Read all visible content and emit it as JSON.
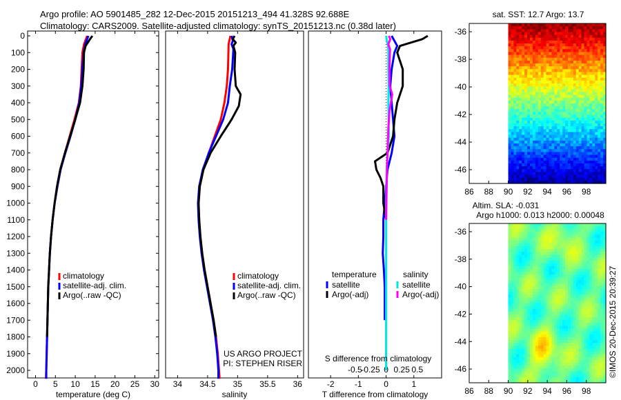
{
  "header": {
    "line1": "Argo profile: AO 5901485_282 12-Dec-2015 20151213_494 41.328S 92.688E",
    "line2": "Climatology: CARS2009. Satellite-adjusted climatology: synTS_20151213.nc (0.38d later)"
  },
  "colors": {
    "clim": "#ff0000",
    "sat": "#0000ff",
    "argo": "#000000",
    "sat_s": "#00e5e5",
    "argo_s": "#ff00ff"
  },
  "chart_data": [
    {
      "type": "line",
      "title": "temperature profile",
      "xlabel": "temperature (deg C)",
      "ylabel": "",
      "xlim": [
        -2,
        31
      ],
      "ylim": [
        2080,
        0
      ],
      "xticks": [
        0,
        5,
        10,
        15,
        20,
        25,
        30
      ],
      "yticks": [
        0,
        100,
        200,
        300,
        400,
        500,
        600,
        700,
        800,
        900,
        1000,
        1100,
        1200,
        1300,
        1400,
        1500,
        1600,
        1700,
        1800,
        1900,
        2000
      ],
      "legend": [
        "climatology",
        "satellite-adj. clim.",
        "Argo(..raw -QC)"
      ],
      "legend_position": "lower-center",
      "series": [
        {
          "name": "climatology",
          "color_key": "clim",
          "points": [
            [
              13.0,
              0
            ],
            [
              12.2,
              50
            ],
            [
              11.8,
              100
            ],
            [
              11.6,
              200
            ],
            [
              11.4,
              300
            ],
            [
              10.9,
              400
            ],
            [
              9.8,
              500
            ],
            [
              8.6,
              600
            ],
            [
              7.4,
              700
            ],
            [
              6.3,
              800
            ],
            [
              5.5,
              900
            ],
            [
              4.8,
              1000
            ],
            [
              4.3,
              1100
            ],
            [
              3.9,
              1200
            ],
            [
              3.6,
              1300
            ],
            [
              3.4,
              1400
            ],
            [
              3.2,
              1500
            ],
            [
              3.1,
              1600
            ],
            [
              3.0,
              1700
            ],
            [
              2.9,
              1800
            ],
            [
              2.8,
              1900
            ],
            [
              2.7,
              2000
            ],
            [
              2.6,
              2050
            ]
          ]
        },
        {
          "name": "satellite-adj. clim.",
          "color_key": "sat",
          "points": [
            [
              13.3,
              0
            ],
            [
              12.5,
              50
            ],
            [
              12.1,
              100
            ],
            [
              11.8,
              200
            ],
            [
              11.5,
              300
            ],
            [
              11.0,
              400
            ],
            [
              10.0,
              500
            ],
            [
              8.8,
              600
            ],
            [
              7.5,
              700
            ],
            [
              6.3,
              800
            ],
            [
              5.5,
              900
            ],
            [
              4.8,
              1000
            ],
            [
              4.3,
              1100
            ],
            [
              3.9,
              1200
            ],
            [
              3.6,
              1300
            ],
            [
              3.4,
              1400
            ],
            [
              3.2,
              1500
            ],
            [
              3.1,
              1600
            ],
            [
              3.0,
              1700
            ],
            [
              2.9,
              1800
            ],
            [
              2.8,
              1900
            ],
            [
              2.7,
              2000
            ],
            [
              2.7,
              2050
            ]
          ]
        },
        {
          "name": "Argo(..raw -QC)",
          "color_key": "argo",
          "points": [
            [
              14.3,
              0
            ],
            [
              13.7,
              20
            ],
            [
              12.6,
              60
            ],
            [
              12.2,
              100
            ],
            [
              12.1,
              200
            ],
            [
              11.8,
              300
            ],
            [
              11.2,
              400
            ],
            [
              10.0,
              500
            ],
            [
              8.7,
              600
            ],
            [
              7.4,
              700
            ],
            [
              6.2,
              800
            ],
            [
              5.4,
              900
            ],
            [
              4.8,
              1000
            ],
            [
              4.3,
              1100
            ],
            [
              3.9,
              1200
            ],
            [
              3.6,
              1300
            ],
            [
              3.4,
              1400
            ],
            [
              3.2,
              1500
            ],
            [
              3.1,
              1600
            ],
            [
              3.0,
              1700
            ],
            [
              2.9,
              1800
            ]
          ]
        }
      ]
    },
    {
      "type": "line",
      "title": "salinity profile",
      "xlabel": "salinity",
      "ylabel": "",
      "xlim": [
        33.8,
        36.1
      ],
      "ylim": [
        2080,
        0
      ],
      "xticks": [
        34,
        34.5,
        35,
        35.5,
        36
      ],
      "xticklabels": [
        "34",
        "34.5",
        "35",
        "35.5",
        "36"
      ],
      "legend": [
        "climatology",
        "satellite-adj. clim.",
        "Argo(..raw -QC)"
      ],
      "legend_position": "lower-center",
      "annotation": [
        "US ARGO PROJECT",
        "PI: STEPHEN RISER"
      ],
      "series": [
        {
          "name": "climatology",
          "color_key": "clim",
          "points": [
            [
              34.88,
              0
            ],
            [
              34.85,
              50
            ],
            [
              34.84,
              200
            ],
            [
              34.82,
              300
            ],
            [
              34.78,
              400
            ],
            [
              34.72,
              500
            ],
            [
              34.62,
              600
            ],
            [
              34.52,
              700
            ],
            [
              34.43,
              800
            ],
            [
              34.37,
              900
            ],
            [
              34.35,
              1000
            ],
            [
              34.36,
              1100
            ],
            [
              34.38,
              1200
            ],
            [
              34.41,
              1300
            ],
            [
              34.45,
              1400
            ],
            [
              34.5,
              1500
            ],
            [
              34.55,
              1600
            ],
            [
              34.6,
              1700
            ],
            [
              34.64,
              1800
            ],
            [
              34.67,
              1900
            ],
            [
              34.69,
              2000
            ],
            [
              34.7,
              2050
            ]
          ]
        },
        {
          "name": "satellite-adj. clim.",
          "color_key": "sat",
          "points": [
            [
              34.9,
              0
            ],
            [
              34.92,
              30
            ],
            [
              34.9,
              50
            ],
            [
              34.93,
              80
            ],
            [
              34.91,
              200
            ],
            [
              34.87,
              300
            ],
            [
              34.84,
              400
            ],
            [
              34.76,
              500
            ],
            [
              34.64,
              600
            ],
            [
              34.52,
              700
            ],
            [
              34.42,
              800
            ],
            [
              34.36,
              900
            ],
            [
              34.34,
              1000
            ],
            [
              34.35,
              1100
            ],
            [
              34.37,
              1200
            ],
            [
              34.4,
              1300
            ],
            [
              34.44,
              1400
            ],
            [
              34.49,
              1500
            ],
            [
              34.54,
              1600
            ],
            [
              34.59,
              1700
            ],
            [
              34.63,
              1800
            ],
            [
              34.66,
              1900
            ],
            [
              34.68,
              2000
            ],
            [
              34.68,
              2050
            ]
          ]
        },
        {
          "name": "Argo(..raw -QC)",
          "color_key": "argo",
          "points": [
            [
              34.95,
              0
            ],
            [
              34.92,
              20
            ],
            [
              34.97,
              40
            ],
            [
              34.93,
              60
            ],
            [
              34.96,
              100
            ],
            [
              34.95,
              200
            ],
            [
              34.97,
              300
            ],
            [
              35.05,
              350
            ],
            [
              35.02,
              420
            ],
            [
              34.9,
              500
            ],
            [
              34.72,
              600
            ],
            [
              34.55,
              700
            ],
            [
              34.43,
              800
            ],
            [
              34.37,
              900
            ],
            [
              34.35,
              1000
            ],
            [
              34.36,
              1100
            ],
            [
              34.38,
              1200
            ],
            [
              34.41,
              1300
            ],
            [
              34.45,
              1400
            ],
            [
              34.5,
              1500
            ],
            [
              34.55,
              1600
            ],
            [
              34.6,
              1700
            ],
            [
              34.64,
              1800
            ]
          ]
        }
      ]
    },
    {
      "type": "line",
      "title": "difference profile",
      "xlabel": "T difference from climatology",
      "xlabel_top": "S difference from climatology",
      "xlim": [
        -2.8,
        2.0
      ],
      "ylim": [
        2080,
        0
      ],
      "xticks": [
        -2,
        -1,
        0,
        1
      ],
      "xticklabels": [
        "-2",
        "-1",
        "0",
        "1"
      ],
      "s_ticks": [
        -0.5,
        -0.25,
        0,
        0.25,
        0.5
      ],
      "s_ticklabels": [
        "-0.5",
        "-0.25",
        "0",
        "0.25",
        "0.5"
      ],
      "legend_titles": [
        "temperature",
        "salinity"
      ],
      "legend": [
        "satellite",
        "Argo(-adj)",
        "satellite",
        "Argo(-adj)"
      ],
      "series": [
        {
          "name": "T satellite",
          "color_key": "sat",
          "points": [
            [
              0.2,
              0
            ],
            [
              0.3,
              30
            ],
            [
              0.4,
              60
            ],
            [
              0.3,
              100
            ],
            [
              0.2,
              200
            ],
            [
              0.15,
              300
            ],
            [
              0.2,
              400
            ],
            [
              0.25,
              500
            ],
            [
              0.3,
              600
            ],
            [
              0.2,
              700
            ],
            [
              0.05,
              800
            ],
            [
              0.0,
              900
            ],
            [
              -0.05,
              1000
            ],
            [
              -0.1,
              1100
            ],
            [
              -0.1,
              1200
            ],
            [
              -0.12,
              1300
            ],
            [
              -0.08,
              1400
            ],
            [
              -0.05,
              1500
            ],
            [
              -0.05,
              1600
            ],
            [
              -0.05,
              1700
            ]
          ]
        },
        {
          "name": "T Argo(-adj)",
          "color_key": "argo",
          "points": [
            [
              1.5,
              0
            ],
            [
              1.3,
              20
            ],
            [
              0.5,
              60
            ],
            [
              0.4,
              100
            ],
            [
              0.6,
              200
            ],
            [
              0.6,
              300
            ],
            [
              0.4,
              400
            ],
            [
              0.3,
              500
            ],
            [
              0.25,
              600
            ],
            [
              0.05,
              700
            ],
            [
              -0.4,
              750
            ],
            [
              -0.35,
              800
            ],
            [
              -0.2,
              850
            ],
            [
              -0.1,
              900
            ],
            [
              -0.1,
              1000
            ],
            [
              0.0,
              1100
            ]
          ]
        },
        {
          "name": "S satellite",
          "color_key": "sat_s",
          "points": [
            [
              0.0,
              0
            ],
            [
              0.03,
              30
            ],
            [
              0.07,
              60
            ],
            [
              0.08,
              100
            ],
            [
              0.08,
              200
            ],
            [
              0.09,
              300
            ],
            [
              0.08,
              400
            ],
            [
              0.09,
              500
            ],
            [
              0.1,
              600
            ],
            [
              0.05,
              700
            ],
            [
              0.02,
              800
            ],
            [
              0.01,
              900
            ],
            [
              0.0,
              1000
            ],
            [
              0.0,
              1200
            ],
            [
              0.0,
              1500
            ],
            [
              0.0,
              2000
            ]
          ]
        },
        {
          "name": "S Argo(-adj)",
          "color_key": "argo_s",
          "points": [
            [
              0.1,
              0
            ],
            [
              0.15,
              20
            ],
            [
              0.08,
              50
            ],
            [
              0.14,
              80
            ],
            [
              0.12,
              200
            ],
            [
              0.13,
              300
            ],
            [
              0.22,
              350
            ],
            [
              0.12,
              450
            ],
            [
              0.08,
              550
            ],
            [
              0.05,
              700
            ],
            [
              0.03,
              800
            ],
            [
              0.02,
              900
            ],
            [
              0.01,
              1000
            ],
            [
              0.0,
              1100
            ]
          ]
        }
      ]
    },
    {
      "type": "heatmap",
      "title": "sat. SST: 12.7  Argo: 13.7",
      "xlim": [
        86,
        100
      ],
      "ylim": [
        -47,
        -35.4
      ],
      "xticks": [
        86,
        88,
        90,
        92,
        94,
        96,
        98
      ],
      "yticks": [
        -36,
        -38,
        -40,
        -42,
        -44,
        -46
      ],
      "data_start_lon": 90,
      "colormap": "jet"
    },
    {
      "type": "heatmap",
      "title": "Altim. SLA: -0.031",
      "subtitle": "Argo h1000: 0.013  h2000: 0.00048",
      "xlim": [
        86,
        100
      ],
      "ylim": [
        -47,
        -35.4
      ],
      "xticks": [
        86,
        88,
        90,
        92,
        94,
        96,
        98
      ],
      "yticks": [
        -36,
        -38,
        -40,
        -42,
        -44,
        -46
      ],
      "data_start_lon": 90,
      "colormap": "jet"
    }
  ],
  "footer": {
    "imos_stamp": "©IMOS 20-Dec-2015 20:39:27"
  }
}
